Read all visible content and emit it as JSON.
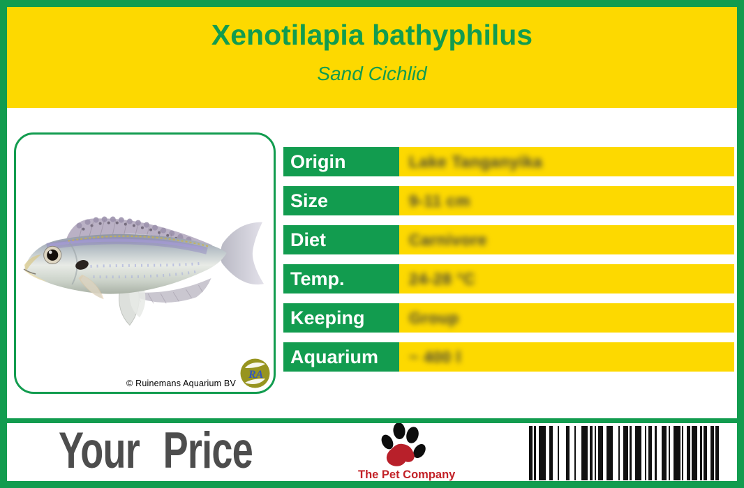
{
  "colors": {
    "green": "#129C4F",
    "yellow": "#FDD900",
    "price_text_gray": "#4D4D4D",
    "brand_red": "#C22026"
  },
  "header": {
    "title": "Xenotilapia bathyphilus",
    "subtitle": "Sand Cichlid"
  },
  "photo": {
    "credit": "© Ruinemans Aquarium BV",
    "logo_monogram": "RA"
  },
  "table": {
    "rows": [
      {
        "label": "Origin",
        "value": "Lake Tanganyika"
      },
      {
        "label": "Size",
        "value": "9-11 cm"
      },
      {
        "label": "Diet",
        "value": "Carnivore"
      },
      {
        "label": "Temp.",
        "value": "24-28 °C"
      },
      {
        "label": "Keeping",
        "value": "Group"
      },
      {
        "label": "Aquarium",
        "value": "~ 400 l"
      }
    ]
  },
  "footer": {
    "price_label": "Your Price",
    "brand_name": "The Pet Company"
  },
  "barcode": {
    "pattern": [
      2,
      1,
      1,
      2,
      4,
      2,
      2,
      3,
      1,
      4,
      2,
      3,
      1,
      3,
      4,
      1,
      2,
      1,
      1,
      1,
      3,
      2,
      4,
      3,
      1,
      2,
      3,
      1,
      1,
      2,
      4,
      2,
      1,
      1,
      2,
      2,
      1,
      3,
      3,
      1,
      1,
      2,
      4,
      1,
      1,
      2,
      2,
      1,
      3,
      2,
      1,
      1,
      2,
      2,
      2,
      1,
      2
    ]
  }
}
